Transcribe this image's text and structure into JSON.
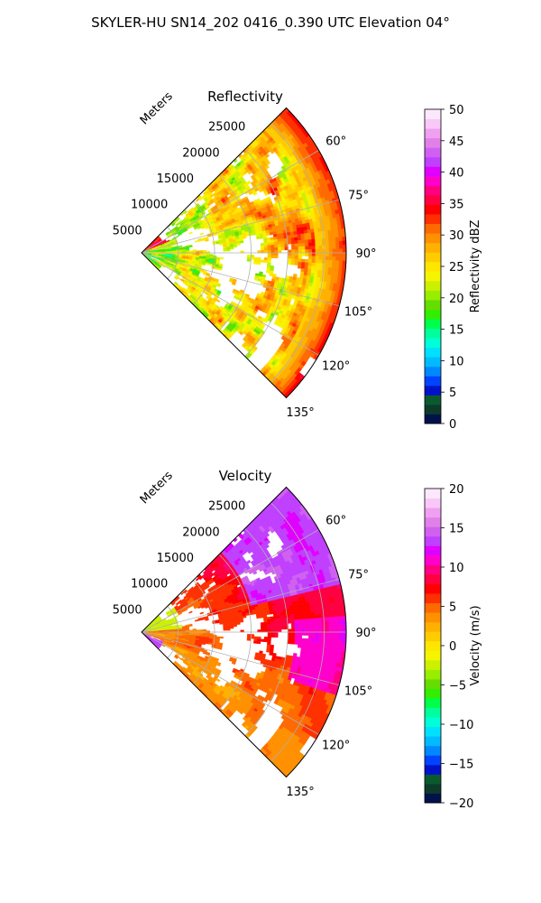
{
  "figure": {
    "suptitle": "SKYLER-HU  SN14_202  0416_0.390 UTC Elevation 04°"
  },
  "chart_data": [
    {
      "type": "polar-sector",
      "title": "Reflectivity",
      "radial_label": "Meters",
      "theta_range_deg": [
        45,
        135
      ],
      "r_max": 28000,
      "radial_ticks": [
        5000,
        10000,
        15000,
        20000,
        25000
      ],
      "radial_tick_labels": [
        "5000",
        "10000",
        "15000",
        "20000",
        "25000"
      ],
      "angle_ticks": [
        60,
        75,
        90,
        105,
        120,
        135
      ],
      "angle_tick_labels": [
        "60°",
        "75°",
        "90°",
        "105°",
        "120°",
        "135°"
      ],
      "grid": true,
      "colorbar": {
        "label": "Reflectivity dBZ",
        "range": [
          0,
          50
        ],
        "ticks": [
          0,
          5,
          10,
          15,
          20,
          25,
          30,
          35,
          40,
          45,
          50
        ],
        "tick_labels": [
          "0",
          "5",
          "10",
          "15",
          "20",
          "25",
          "30",
          "35",
          "40",
          "45",
          "50"
        ],
        "colors": [
          "#00124a",
          "#0d3b2a",
          "#0a5a2e",
          "#0012c8",
          "#0044ff",
          "#0088ff",
          "#00bbff",
          "#00e0ff",
          "#00ffd9",
          "#00ff9c",
          "#00ff4a",
          "#33ee00",
          "#66dd00",
          "#99ee00",
          "#ccf000",
          "#f5f500",
          "#ffe600",
          "#ffcc00",
          "#ffb000",
          "#ff9000",
          "#ff6a00",
          "#ff3000",
          "#ff0000",
          "#ff0040",
          "#ff0080",
          "#ff00cc",
          "#e000ff",
          "#bf40ff",
          "#d060f0",
          "#e080e8",
          "#f0a0f0",
          "#f8c8f8",
          "#fce8fc"
        ]
      }
    },
    {
      "type": "polar-sector",
      "title": "Velocity",
      "radial_label": "Meters",
      "theta_range_deg": [
        45,
        135
      ],
      "r_max": 28000,
      "radial_ticks": [
        5000,
        10000,
        15000,
        20000,
        25000
      ],
      "radial_tick_labels": [
        "5000",
        "10000",
        "15000",
        "20000",
        "25000"
      ],
      "angle_ticks": [
        60,
        75,
        90,
        105,
        120,
        135
      ],
      "angle_tick_labels": [
        "60°",
        "75°",
        "90°",
        "105°",
        "120°",
        "135°"
      ],
      "grid": true,
      "colorbar": {
        "label": "Velocity (m/s)",
        "range": [
          -20,
          20
        ],
        "ticks": [
          -20,
          -15,
          -10,
          -5,
          0,
          5,
          10,
          15,
          20
        ],
        "tick_labels": [
          "−20",
          "−15",
          "−10",
          "−5",
          "0",
          "5",
          "10",
          "15",
          "20"
        ],
        "colors": [
          "#00124a",
          "#0d3b2a",
          "#0a5a2e",
          "#0012c8",
          "#0044ff",
          "#0088ff",
          "#00bbff",
          "#00e0ff",
          "#00ffd9",
          "#00ff9c",
          "#00ff4a",
          "#33ee00",
          "#66dd00",
          "#99ee00",
          "#ccf000",
          "#f5f500",
          "#ffe600",
          "#ffcc00",
          "#ffb000",
          "#ff9000",
          "#ff6a00",
          "#ff3000",
          "#ff0000",
          "#ff0040",
          "#ff0080",
          "#ff00cc",
          "#e000ff",
          "#bf40ff",
          "#d060f0",
          "#e080e8",
          "#f0a0f0",
          "#f8c8f8",
          "#fce8fc"
        ]
      }
    }
  ]
}
